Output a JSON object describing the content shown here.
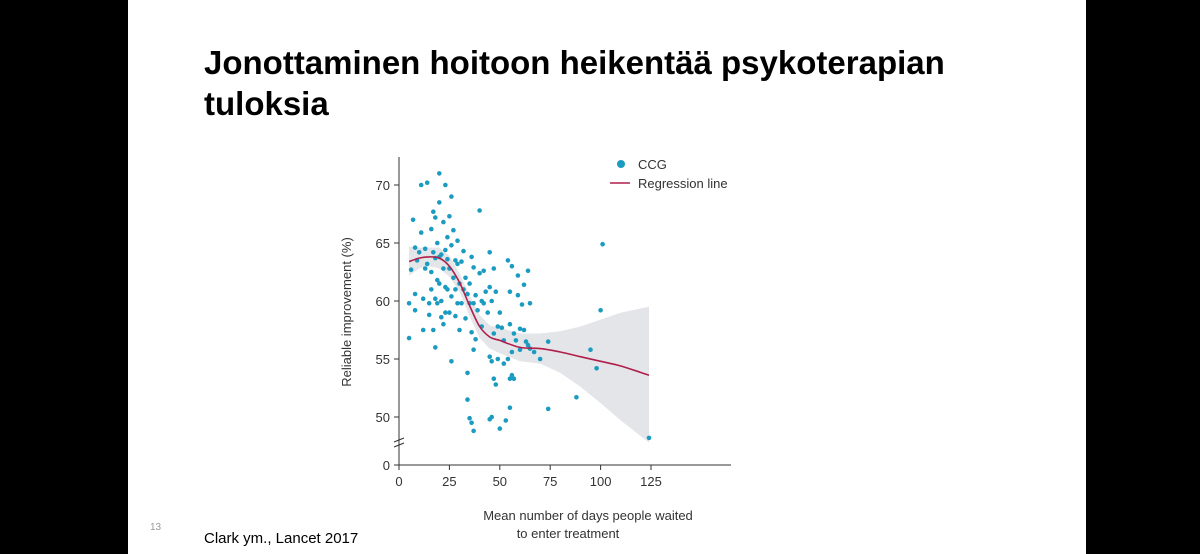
{
  "slide": {
    "title": "Jonottaminen hoitoon heikentää psykoterapian tuloksia",
    "slide_number": "13",
    "citation": "Clark ym., Lancet 2017"
  },
  "colors": {
    "points": "#1a9bbf",
    "regression": "#b01e4a",
    "band": "#e3e5e8",
    "axis": "#333333",
    "background": "#000000"
  },
  "chart_data": {
    "type": "scatter",
    "title": "",
    "xlabel": "Mean number of days people waited to enter treatment",
    "xlabel_lines": [
      "Mean number of days people waited",
      "to enter treatment"
    ],
    "ylabel": "Reliable improvement (%)",
    "xlim": [
      0,
      130
    ],
    "ylim": [
      45,
      72
    ],
    "axis_break": true,
    "x_ticks": [
      0,
      25,
      50,
      75,
      100,
      125
    ],
    "y_ticks": [
      0,
      50,
      55,
      60,
      65,
      70
    ],
    "y_tick_labels": [
      "0",
      "50",
      "55",
      "60",
      "65",
      "70"
    ],
    "grid": false,
    "legend": {
      "position": "top-right",
      "entries": [
        {
          "label": "CCG",
          "marker": "dot"
        },
        {
          "label": "Regression line",
          "marker": "line"
        }
      ]
    },
    "series": [
      {
        "name": "CCG",
        "type": "scatter",
        "points": [
          [
            5,
            59.8
          ],
          [
            5,
            56.8
          ],
          [
            6,
            62.7
          ],
          [
            7,
            67.0
          ],
          [
            8,
            64.6
          ],
          [
            8,
            60.6
          ],
          [
            8,
            59.2
          ],
          [
            9,
            63.5
          ],
          [
            10,
            64.2
          ],
          [
            11,
            70.0
          ],
          [
            11,
            65.9
          ],
          [
            12,
            60.2
          ],
          [
            12,
            57.5
          ],
          [
            13,
            64.5
          ],
          [
            13,
            62.8
          ],
          [
            14,
            70.2
          ],
          [
            14,
            63.2
          ],
          [
            15,
            59.8
          ],
          [
            15,
            58.8
          ],
          [
            16,
            66.2
          ],
          [
            16,
            62.5
          ],
          [
            16,
            61.0
          ],
          [
            17,
            67.7
          ],
          [
            17,
            64.2
          ],
          [
            17,
            57.5
          ],
          [
            18,
            67.2
          ],
          [
            18,
            63.7
          ],
          [
            18,
            60.2
          ],
          [
            18,
            56.0
          ],
          [
            19,
            65.0
          ],
          [
            19,
            61.8
          ],
          [
            19,
            59.8
          ],
          [
            20,
            71.0
          ],
          [
            20,
            68.5
          ],
          [
            20,
            63.8
          ],
          [
            20,
            61.5
          ],
          [
            21,
            64.0
          ],
          [
            21,
            60.0
          ],
          [
            21,
            58.6
          ],
          [
            22,
            66.8
          ],
          [
            22,
            62.8
          ],
          [
            22,
            58.0
          ],
          [
            23,
            70.0
          ],
          [
            23,
            64.4
          ],
          [
            23,
            61.2
          ],
          [
            23,
            59.0
          ],
          [
            24,
            65.5
          ],
          [
            24,
            63.6
          ],
          [
            24,
            61.0
          ],
          [
            25,
            67.3
          ],
          [
            25,
            62.8
          ],
          [
            25,
            59.0
          ],
          [
            26,
            69.0
          ],
          [
            26,
            64.8
          ],
          [
            26,
            60.4
          ],
          [
            26,
            54.8
          ],
          [
            27,
            66.1
          ],
          [
            27,
            62.0
          ],
          [
            28,
            63.5
          ],
          [
            28,
            61.0
          ],
          [
            28,
            58.7
          ],
          [
            29,
            65.2
          ],
          [
            29,
            63.2
          ],
          [
            29,
            59.8
          ],
          [
            30,
            61.5
          ],
          [
            30,
            57.5
          ],
          [
            31,
            63.4
          ],
          [
            31,
            59.8
          ],
          [
            32,
            64.3
          ],
          [
            32,
            61.0
          ],
          [
            33,
            62.0
          ],
          [
            33,
            58.5
          ],
          [
            34,
            60.6
          ],
          [
            34,
            53.8
          ],
          [
            34,
            51.5
          ],
          [
            35,
            61.5
          ],
          [
            35,
            59.8
          ],
          [
            35,
            49.9
          ],
          [
            36,
            63.8
          ],
          [
            36,
            57.3
          ],
          [
            36,
            49.5
          ],
          [
            37,
            62.9
          ],
          [
            37,
            59.8
          ],
          [
            37,
            55.8
          ],
          [
            37,
            48.8
          ],
          [
            38,
            60.5
          ],
          [
            38,
            56.7
          ],
          [
            39,
            59.2
          ],
          [
            40,
            67.8
          ],
          [
            40,
            62.4
          ],
          [
            41,
            60.0
          ],
          [
            41,
            57.8
          ],
          [
            42,
            62.6
          ],
          [
            42,
            59.8
          ],
          [
            43,
            60.8
          ],
          [
            44,
            59.0
          ],
          [
            45,
            64.2
          ],
          [
            45,
            61.2
          ],
          [
            45,
            55.2
          ],
          [
            45,
            49.8
          ],
          [
            46,
            60.0
          ],
          [
            46,
            54.8
          ],
          [
            46,
            50.0
          ],
          [
            47,
            62.8
          ],
          [
            47,
            57.2
          ],
          [
            47,
            53.3
          ],
          [
            48,
            60.8
          ],
          [
            48,
            52.8
          ],
          [
            49,
            57.8
          ],
          [
            49,
            55.0
          ],
          [
            50,
            59.0
          ],
          [
            50,
            49.0
          ],
          [
            51,
            57.7
          ],
          [
            52,
            56.6
          ],
          [
            52,
            54.6
          ],
          [
            53,
            49.7
          ],
          [
            54,
            63.5
          ],
          [
            54,
            55.0
          ],
          [
            55,
            60.8
          ],
          [
            55,
            58.0
          ],
          [
            55,
            53.3
          ],
          [
            55,
            50.8
          ],
          [
            56,
            63.0
          ],
          [
            56,
            55.6
          ],
          [
            56,
            53.6
          ],
          [
            57,
            57.2
          ],
          [
            57,
            53.3
          ],
          [
            58,
            56.6
          ],
          [
            59,
            62.2
          ],
          [
            59,
            60.5
          ],
          [
            60,
            57.6
          ],
          [
            60,
            55.8
          ],
          [
            61,
            59.7
          ],
          [
            62,
            61.4
          ],
          [
            62,
            57.5
          ],
          [
            63,
            56.5
          ],
          [
            64,
            62.6
          ],
          [
            64,
            56.2
          ],
          [
            65,
            55.9
          ],
          [
            65,
            59.8
          ],
          [
            67,
            55.6
          ],
          [
            70,
            55.0
          ],
          [
            74,
            56.5
          ],
          [
            74,
            50.7
          ],
          [
            88,
            51.7
          ],
          [
            95,
            55.8
          ],
          [
            98,
            54.2
          ],
          [
            100,
            59.2
          ],
          [
            101,
            64.9
          ],
          [
            124,
            48.2
          ]
        ]
      },
      {
        "name": "Regression line",
        "type": "line",
        "x": [
          5,
          10,
          15,
          20,
          25,
          30,
          35,
          40,
          45,
          50,
          60,
          70,
          80,
          90,
          100,
          110,
          124
        ],
        "y": [
          63.4,
          63.7,
          63.8,
          63.7,
          63.0,
          61.6,
          59.6,
          57.8,
          56.9,
          56.6,
          56.0,
          55.9,
          55.6,
          55.2,
          54.8,
          54.4,
          53.6
        ]
      },
      {
        "name": "",
        "type": "band",
        "x": [
          5,
          10,
          15,
          20,
          25,
          30,
          35,
          40,
          45,
          50,
          60,
          70,
          80,
          90,
          100,
          110,
          124
        ],
        "lower": [
          62.2,
          62.8,
          63.0,
          62.8,
          62.1,
          60.8,
          58.7,
          56.8,
          55.9,
          55.5,
          54.8,
          54.6,
          53.8,
          52.6,
          51.2,
          49.7,
          47.8
        ],
        "upper": [
          64.7,
          64.6,
          64.6,
          64.6,
          63.9,
          62.4,
          60.5,
          58.8,
          57.9,
          57.7,
          57.2,
          57.2,
          57.4,
          57.8,
          58.4,
          59.0,
          59.5
        ]
      }
    ]
  }
}
